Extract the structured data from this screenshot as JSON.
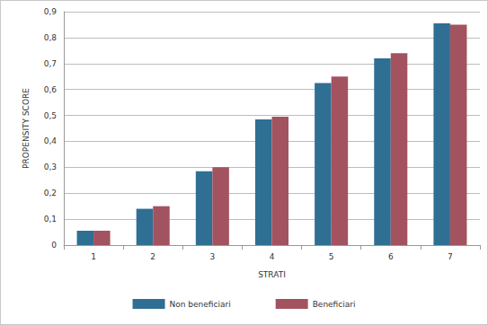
{
  "chart_data": {
    "type": "bar",
    "categories": [
      "1",
      "2",
      "3",
      "4",
      "5",
      "6",
      "7"
    ],
    "series": [
      {
        "name": "Non beneficiari",
        "color": "#2f6f93",
        "values": [
          0.055,
          0.14,
          0.285,
          0.485,
          0.625,
          0.72,
          0.855
        ]
      },
      {
        "name": "Beneficiari",
        "color": "#a3535f",
        "values": [
          0.055,
          0.15,
          0.3,
          0.495,
          0.65,
          0.74,
          0.85
        ]
      }
    ],
    "x_label": "STRATI",
    "y_label": "PROPENSITY SCORE",
    "ylim": [
      0,
      0.9
    ],
    "yticks": [
      0,
      {
        "value": 0.1,
        "label": "0,1"
      },
      {
        "value": 0.2,
        "label": "0,2"
      },
      {
        "value": 0.3,
        "label": "0,3"
      },
      {
        "value": 0.4,
        "label": "0,4"
      },
      {
        "value": 0.5,
        "label": "0,5"
      },
      {
        "value": 0.6,
        "label": "0,6"
      },
      {
        "value": 0.7,
        "label": "0,7"
      },
      {
        "value": 0.8,
        "label": "0,8"
      },
      {
        "value": 0.9,
        "label": "0,9"
      }
    ],
    "grid": true,
    "legend": "bottom"
  }
}
